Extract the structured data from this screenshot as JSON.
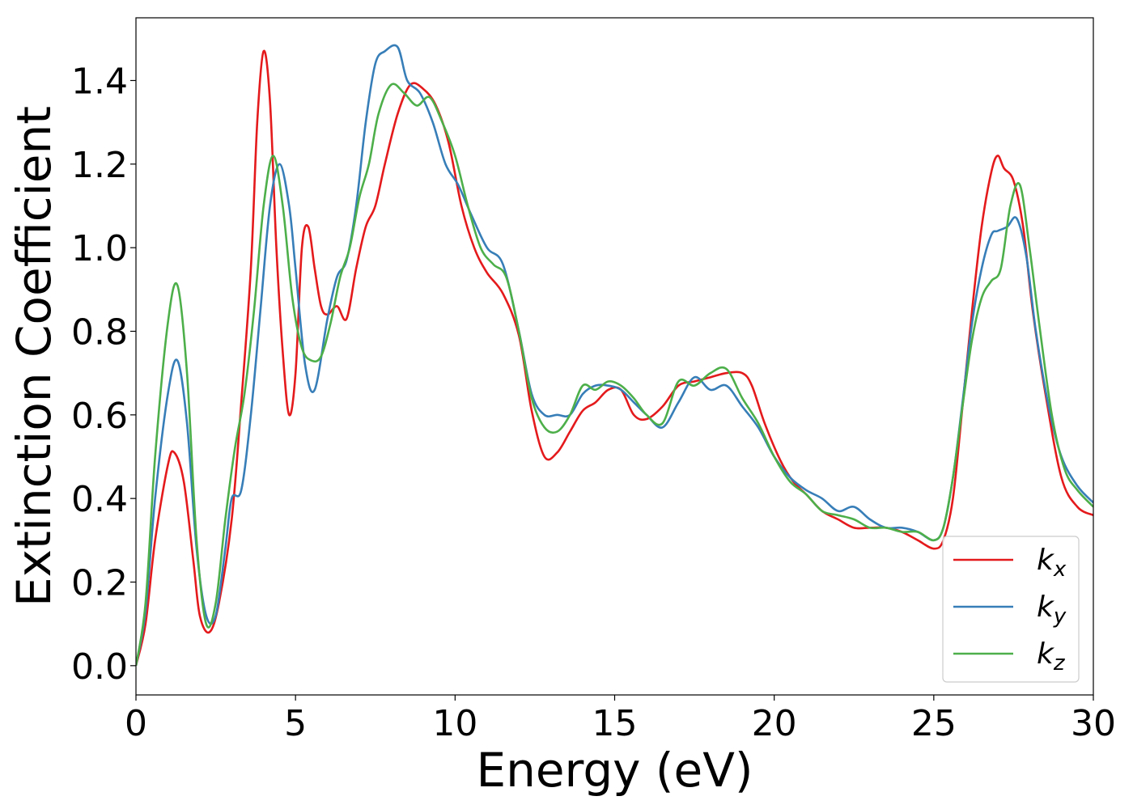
{
  "chart_data": {
    "type": "line",
    "title": "",
    "xlabel": "Energy (eV)",
    "ylabel": "Extinction Coefficient",
    "xlim": [
      0,
      30
    ],
    "ylim": [
      -0.07,
      1.55
    ],
    "xticks": [
      0,
      5,
      10,
      15,
      20,
      25,
      30
    ],
    "xtick_labels": [
      "0",
      "5",
      "10",
      "15",
      "20",
      "25",
      "30"
    ],
    "yticks": [
      0.0,
      0.2,
      0.4,
      0.6,
      0.8,
      1.0,
      1.2,
      1.4
    ],
    "ytick_labels": [
      "0.0",
      "0.2",
      "0.4",
      "0.6",
      "0.8",
      "1.0",
      "1.2",
      "1.4"
    ],
    "grid": false,
    "legend_position": "bottom-right",
    "series": [
      {
        "name": "k_x",
        "color": "#e41a1c",
        "x": [
          0,
          0.3,
          0.6,
          1.0,
          1.2,
          1.5,
          1.8,
          2.0,
          2.3,
          2.6,
          3.0,
          3.3,
          3.6,
          3.8,
          4.0,
          4.2,
          4.4,
          4.6,
          4.8,
          5.0,
          5.2,
          5.4,
          5.6,
          5.8,
          6.0,
          6.3,
          6.6,
          6.9,
          7.2,
          7.5,
          7.8,
          8.2,
          8.6,
          9.0,
          9.4,
          9.8,
          10.2,
          10.6,
          11.0,
          11.5,
          12.0,
          12.4,
          12.8,
          13.2,
          13.6,
          14.0,
          14.4,
          14.8,
          15.2,
          15.6,
          16.0,
          16.5,
          17.0,
          17.5,
          18.0,
          18.5,
          19.0,
          19.3,
          19.7,
          20.2,
          20.6,
          21.0,
          21.5,
          22.0,
          22.5,
          23.0,
          23.5,
          24.0,
          24.5,
          25.0,
          25.3,
          25.6,
          25.9,
          26.2,
          26.5,
          26.8,
          27.0,
          27.2,
          27.5,
          27.8,
          28.1,
          28.5,
          29.0,
          29.5,
          30.0
        ],
        "y": [
          0.0,
          0.1,
          0.3,
          0.48,
          0.51,
          0.44,
          0.25,
          0.12,
          0.08,
          0.15,
          0.35,
          0.63,
          0.95,
          1.3,
          1.47,
          1.35,
          1.0,
          0.75,
          0.6,
          0.7,
          1.0,
          1.05,
          0.95,
          0.86,
          0.84,
          0.86,
          0.83,
          0.95,
          1.05,
          1.1,
          1.2,
          1.32,
          1.39,
          1.38,
          1.34,
          1.25,
          1.1,
          1.0,
          0.94,
          0.89,
          0.79,
          0.61,
          0.5,
          0.51,
          0.56,
          0.61,
          0.63,
          0.66,
          0.66,
          0.6,
          0.59,
          0.62,
          0.67,
          0.68,
          0.69,
          0.7,
          0.7,
          0.67,
          0.58,
          0.49,
          0.44,
          0.41,
          0.37,
          0.35,
          0.33,
          0.33,
          0.33,
          0.32,
          0.3,
          0.28,
          0.3,
          0.4,
          0.62,
          0.85,
          1.05,
          1.18,
          1.22,
          1.19,
          1.16,
          1.05,
          0.85,
          0.65,
          0.45,
          0.38,
          0.36
        ]
      },
      {
        "name": "k_y",
        "color": "#377eb8",
        "x": [
          0,
          0.3,
          0.6,
          1.0,
          1.3,
          1.6,
          1.9,
          2.2,
          2.5,
          2.8,
          3.0,
          3.3,
          3.6,
          3.9,
          4.2,
          4.5,
          4.8,
          5.0,
          5.3,
          5.6,
          6.0,
          6.3,
          6.6,
          6.9,
          7.2,
          7.5,
          7.8,
          8.2,
          8.5,
          8.9,
          9.3,
          9.7,
          10.1,
          10.5,
          11.0,
          11.5,
          12.0,
          12.4,
          12.8,
          13.2,
          13.6,
          14.0,
          14.4,
          14.8,
          15.2,
          15.6,
          16.0,
          16.5,
          17.0,
          17.5,
          18.0,
          18.5,
          19.0,
          19.5,
          20.0,
          20.5,
          21.0,
          21.5,
          22.0,
          22.5,
          23.0,
          23.5,
          24.0,
          24.5,
          25.0,
          25.3,
          25.6,
          25.9,
          26.2,
          26.5,
          26.8,
          27.0,
          27.3,
          27.6,
          27.9,
          28.2,
          28.6,
          29.0,
          29.5,
          30.0
        ],
        "y": [
          0.0,
          0.13,
          0.4,
          0.65,
          0.73,
          0.58,
          0.28,
          0.12,
          0.12,
          0.28,
          0.4,
          0.42,
          0.6,
          0.85,
          1.1,
          1.2,
          1.1,
          0.95,
          0.72,
          0.66,
          0.83,
          0.93,
          0.97,
          1.1,
          1.3,
          1.44,
          1.47,
          1.48,
          1.4,
          1.37,
          1.3,
          1.2,
          1.15,
          1.08,
          1.0,
          0.96,
          0.8,
          0.65,
          0.6,
          0.6,
          0.6,
          0.65,
          0.67,
          0.67,
          0.66,
          0.63,
          0.6,
          0.57,
          0.63,
          0.69,
          0.66,
          0.67,
          0.62,
          0.57,
          0.5,
          0.45,
          0.42,
          0.4,
          0.37,
          0.38,
          0.35,
          0.33,
          0.33,
          0.32,
          0.3,
          0.33,
          0.45,
          0.63,
          0.82,
          0.95,
          1.03,
          1.04,
          1.05,
          1.07,
          0.98,
          0.8,
          0.62,
          0.5,
          0.43,
          0.39
        ]
      },
      {
        "name": "k_z",
        "color": "#4daf4a",
        "x": [
          0,
          0.3,
          0.6,
          1.0,
          1.3,
          1.6,
          1.9,
          2.2,
          2.5,
          2.8,
          3.1,
          3.4,
          3.7,
          4.0,
          4.3,
          4.6,
          4.9,
          5.2,
          5.5,
          5.8,
          6.1,
          6.4,
          6.7,
          7.0,
          7.3,
          7.6,
          8.0,
          8.4,
          8.8,
          9.2,
          9.6,
          10.0,
          10.4,
          10.8,
          11.2,
          11.6,
          12.0,
          12.4,
          12.8,
          13.2,
          13.6,
          14.0,
          14.4,
          14.8,
          15.2,
          15.6,
          16.0,
          16.5,
          17.0,
          17.5,
          18.0,
          18.5,
          19.0,
          19.5,
          20.0,
          20.5,
          21.0,
          21.5,
          22.0,
          22.5,
          23.0,
          23.5,
          24.0,
          24.5,
          25.0,
          25.3,
          25.6,
          25.9,
          26.2,
          26.5,
          26.8,
          27.1,
          27.4,
          27.7,
          28.0,
          28.3,
          28.7,
          29.1,
          29.5,
          30.0
        ],
        "y": [
          0.0,
          0.15,
          0.5,
          0.82,
          0.91,
          0.7,
          0.3,
          0.1,
          0.15,
          0.35,
          0.52,
          0.65,
          0.85,
          1.1,
          1.22,
          1.1,
          0.88,
          0.76,
          0.73,
          0.74,
          0.82,
          0.93,
          1.0,
          1.12,
          1.2,
          1.32,
          1.39,
          1.37,
          1.34,
          1.36,
          1.3,
          1.22,
          1.1,
          1.0,
          0.96,
          0.93,
          0.8,
          0.64,
          0.57,
          0.56,
          0.6,
          0.67,
          0.66,
          0.68,
          0.67,
          0.64,
          0.6,
          0.58,
          0.68,
          0.67,
          0.7,
          0.71,
          0.64,
          0.58,
          0.5,
          0.44,
          0.41,
          0.37,
          0.36,
          0.35,
          0.33,
          0.33,
          0.32,
          0.32,
          0.3,
          0.33,
          0.45,
          0.62,
          0.78,
          0.88,
          0.92,
          0.95,
          1.1,
          1.15,
          1.0,
          0.82,
          0.6,
          0.47,
          0.42,
          0.38
        ]
      }
    ]
  },
  "legend": {
    "base": "k",
    "items": [
      {
        "sub": "x",
        "color": "#e41a1c"
      },
      {
        "sub": "y",
        "color": "#377eb8"
      },
      {
        "sub": "z",
        "color": "#4daf4a"
      }
    ]
  }
}
